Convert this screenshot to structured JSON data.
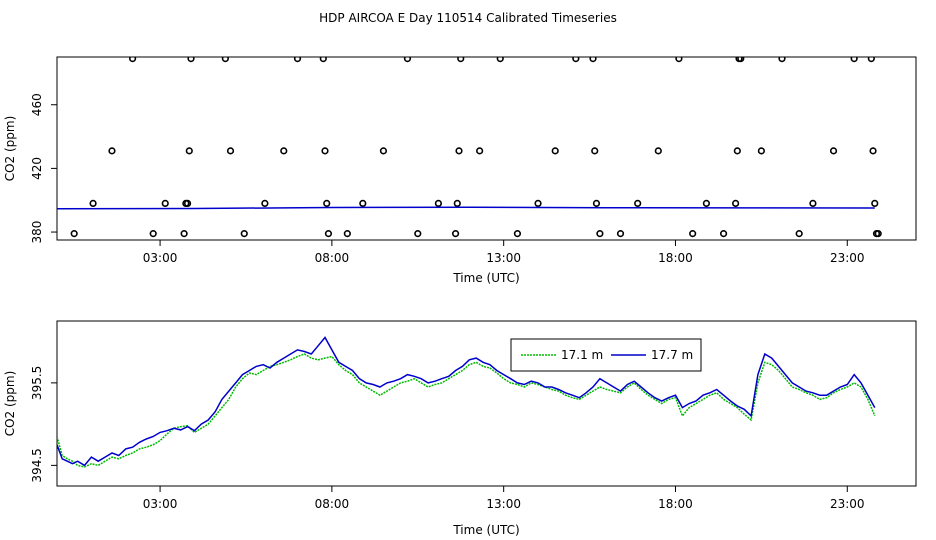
{
  "figure": {
    "title": "HDP AIRCOA E  Day 110514  Calibrated Timeseries"
  },
  "chart_data": [
    {
      "type": "scatter",
      "xlabel": "Time (UTC)",
      "ylabel": "CO2 (ppm)",
      "xlim": [
        0.0,
        25.0
      ],
      "ylim": [
        375.0,
        490.0
      ],
      "x_ticks": [
        3,
        8,
        13,
        18,
        23
      ],
      "x_tick_labels": [
        "03:00",
        "08:00",
        "13:00",
        "18:00",
        "23:00"
      ],
      "y_ticks": [
        380,
        420,
        460
      ],
      "y_tick_labels": [
        "380",
        "420",
        "460"
      ],
      "grid": false,
      "series": [
        {
          "style": "points",
          "color": "#000000",
          "x": [
            0.5,
            1.05,
            1.6,
            2.2,
            2.8,
            3.15,
            3.7,
            3.75,
            3.8,
            3.85,
            3.9,
            4.9,
            5.05,
            5.45,
            6.05,
            6.6,
            7.0,
            7.75,
            7.8,
            7.85,
            7.9,
            8.45,
            8.9,
            9.5,
            10.2,
            10.5,
            11.1,
            11.6,
            11.65,
            11.7,
            11.75,
            12.3,
            12.9,
            13.4,
            14.0,
            14.5,
            15.1,
            15.6,
            15.65,
            15.7,
            15.8,
            16.4,
            16.9,
            17.5,
            18.1,
            18.5,
            18.9,
            19.4,
            19.75,
            19.8,
            19.85,
            19.9,
            20.5,
            21.1,
            21.6,
            22.0,
            22.6,
            23.2,
            23.7,
            23.75,
            23.8,
            23.85,
            23.9
          ],
          "y": [
            379,
            398,
            431,
            489,
            379,
            398,
            379,
            398,
            398,
            431,
            489,
            489,
            431,
            379,
            398,
            431,
            489,
            489,
            431,
            398,
            379,
            379,
            398,
            431,
            489,
            379,
            398,
            379,
            398,
            431,
            489,
            431,
            489,
            379,
            398,
            431,
            489,
            489,
            431,
            398,
            379,
            379,
            398,
            431,
            489,
            379,
            398,
            379,
            398,
            431,
            489,
            489,
            431,
            489,
            379,
            398,
            431,
            489,
            489,
            431,
            398,
            379,
            379
          ]
        },
        {
          "style": "line",
          "color": "#0000cc",
          "x": [
            0.0,
            4.0,
            8.0,
            12.0,
            16.0,
            20.0,
            23.8
          ],
          "y": [
            394.6,
            394.8,
            395.4,
            395.6,
            395.3,
            395.2,
            395.1
          ]
        }
      ]
    },
    {
      "type": "line",
      "xlabel": "Time (UTC)",
      "ylabel": "CO2 (ppm)",
      "xlim": [
        0.0,
        25.0
      ],
      "ylim": [
        394.25,
        396.25
      ],
      "x_ticks": [
        3,
        8,
        13,
        18,
        23
      ],
      "x_tick_labels": [
        "03:00",
        "08:00",
        "13:00",
        "18:00",
        "23:00"
      ],
      "y_ticks": [
        394.5,
        395.5
      ],
      "y_tick_labels": [
        "394.5",
        "395.5"
      ],
      "grid": false,
      "legend": {
        "placement": "top-center"
      },
      "series": [
        {
          "name": "17.1 m",
          "color": "#00bb00",
          "dash": "2,1",
          "x": [
            0.0,
            0.15,
            0.3,
            0.45,
            0.6,
            0.8,
            1.0,
            1.2,
            1.4,
            1.6,
            1.8,
            2.0,
            2.2,
            2.4,
            2.6,
            2.8,
            3.0,
            3.2,
            3.4,
            3.6,
            3.8,
            4.0,
            4.2,
            4.4,
            4.6,
            4.8,
            5.0,
            5.2,
            5.4,
            5.6,
            5.8,
            6.0,
            6.2,
            6.4,
            6.6,
            6.8,
            7.0,
            7.2,
            7.4,
            7.6,
            7.8,
            8.0,
            8.2,
            8.4,
            8.6,
            8.8,
            9.0,
            9.2,
            9.4,
            9.6,
            9.8,
            10.0,
            10.2,
            10.4,
            10.6,
            10.8,
            11.0,
            11.2,
            11.4,
            11.6,
            11.8,
            12.0,
            12.2,
            12.4,
            12.6,
            12.8,
            13.0,
            13.2,
            13.4,
            13.6,
            13.8,
            14.0,
            14.2,
            14.4,
            14.6,
            14.8,
            15.0,
            15.2,
            15.4,
            15.6,
            15.8,
            16.0,
            16.2,
            16.4,
            16.6,
            16.8,
            17.0,
            17.2,
            17.4,
            17.6,
            17.8,
            18.0,
            18.2,
            18.4,
            18.6,
            18.8,
            19.0,
            19.2,
            19.4,
            19.6,
            19.8,
            20.0,
            20.2,
            20.4,
            20.6,
            20.8,
            21.0,
            21.2,
            21.4,
            21.6,
            21.8,
            22.0,
            22.2,
            22.4,
            22.6,
            22.8,
            23.0,
            23.2,
            23.4,
            23.6,
            23.8
          ],
          "y": [
            394.85,
            394.62,
            394.58,
            394.55,
            394.5,
            394.48,
            394.52,
            394.5,
            394.55,
            394.6,
            394.58,
            394.62,
            394.65,
            394.7,
            394.72,
            394.75,
            394.8,
            394.88,
            394.95,
            394.97,
            394.98,
            394.9,
            394.95,
            395.0,
            395.1,
            395.2,
            395.3,
            395.45,
            395.55,
            395.62,
            395.6,
            395.65,
            395.7,
            395.72,
            395.75,
            395.78,
            395.82,
            395.85,
            395.8,
            395.78,
            395.8,
            395.82,
            395.72,
            395.65,
            395.6,
            395.5,
            395.45,
            395.4,
            395.35,
            395.4,
            395.45,
            395.5,
            395.52,
            395.55,
            395.5,
            395.45,
            395.48,
            395.5,
            395.55,
            395.6,
            395.65,
            395.72,
            395.75,
            395.7,
            395.68,
            395.62,
            395.55,
            395.5,
            395.48,
            395.45,
            395.5,
            395.48,
            395.45,
            395.42,
            395.4,
            395.35,
            395.32,
            395.3,
            395.35,
            395.4,
            395.45,
            395.42,
            395.4,
            395.38,
            395.45,
            395.5,
            395.42,
            395.35,
            395.3,
            395.25,
            395.3,
            395.32,
            395.1,
            395.2,
            395.25,
            395.3,
            395.35,
            395.38,
            395.3,
            395.25,
            395.2,
            395.12,
            395.05,
            395.5,
            395.75,
            395.72,
            395.65,
            395.55,
            395.45,
            395.42,
            395.38,
            395.35,
            395.3,
            395.32,
            395.38,
            395.42,
            395.45,
            395.5,
            395.45,
            395.3,
            395.1
          ]
        },
        {
          "name": "17.7 m",
          "color": "#0000cc",
          "x": [
            0.0,
            0.15,
            0.3,
            0.45,
            0.6,
            0.8,
            1.0,
            1.2,
            1.4,
            1.6,
            1.8,
            2.0,
            2.2,
            2.4,
            2.6,
            2.8,
            3.0,
            3.2,
            3.4,
            3.6,
            3.8,
            4.0,
            4.2,
            4.4,
            4.6,
            4.8,
            5.0,
            5.2,
            5.4,
            5.6,
            5.8,
            6.0,
            6.2,
            6.4,
            6.6,
            6.8,
            7.0,
            7.2,
            7.4,
            7.6,
            7.8,
            8.0,
            8.2,
            8.4,
            8.6,
            8.8,
            9.0,
            9.2,
            9.4,
            9.6,
            9.8,
            10.0,
            10.2,
            10.4,
            10.6,
            10.8,
            11.0,
            11.2,
            11.4,
            11.6,
            11.8,
            12.0,
            12.2,
            12.4,
            12.6,
            12.8,
            13.0,
            13.2,
            13.4,
            13.6,
            13.8,
            14.0,
            14.2,
            14.4,
            14.6,
            14.8,
            15.0,
            15.2,
            15.4,
            15.6,
            15.8,
            16.0,
            16.2,
            16.4,
            16.6,
            16.8,
            17.0,
            17.2,
            17.4,
            17.6,
            17.8,
            18.0,
            18.2,
            18.4,
            18.6,
            18.8,
            19.0,
            19.2,
            19.4,
            19.6,
            19.8,
            20.0,
            20.2,
            20.4,
            20.6,
            20.8,
            21.0,
            21.2,
            21.4,
            21.6,
            21.8,
            22.0,
            22.2,
            22.4,
            22.6,
            22.8,
            23.0,
            23.2,
            23.4,
            23.6,
            23.8
          ],
          "y": [
            394.75,
            394.58,
            394.55,
            394.52,
            394.55,
            394.5,
            394.6,
            394.55,
            394.6,
            394.65,
            394.62,
            394.7,
            394.72,
            394.78,
            394.82,
            394.85,
            394.9,
            394.92,
            394.95,
            394.93,
            394.97,
            394.92,
            395.0,
            395.05,
            395.15,
            395.3,
            395.4,
            395.5,
            395.6,
            395.65,
            395.7,
            395.72,
            395.68,
            395.75,
            395.8,
            395.85,
            395.9,
            395.88,
            395.85,
            395.95,
            396.05,
            395.9,
            395.75,
            395.7,
            395.65,
            395.55,
            395.5,
            395.48,
            395.45,
            395.5,
            395.52,
            395.55,
            395.6,
            395.58,
            395.55,
            395.5,
            395.52,
            395.55,
            395.58,
            395.65,
            395.7,
            395.78,
            395.8,
            395.75,
            395.72,
            395.65,
            395.6,
            395.55,
            395.5,
            395.48,
            395.52,
            395.5,
            395.45,
            395.45,
            395.42,
            395.38,
            395.35,
            395.32,
            395.38,
            395.45,
            395.55,
            395.5,
            395.45,
            395.4,
            395.48,
            395.52,
            395.45,
            395.38,
            395.32,
            395.28,
            395.32,
            395.35,
            395.2,
            395.25,
            395.28,
            395.35,
            395.38,
            395.42,
            395.35,
            395.28,
            395.22,
            395.18,
            395.1,
            395.6,
            395.85,
            395.8,
            395.7,
            395.6,
            395.5,
            395.45,
            395.4,
            395.38,
            395.35,
            395.35,
            395.4,
            395.45,
            395.48,
            395.6,
            395.5,
            395.35,
            395.2
          ]
        }
      ]
    }
  ]
}
